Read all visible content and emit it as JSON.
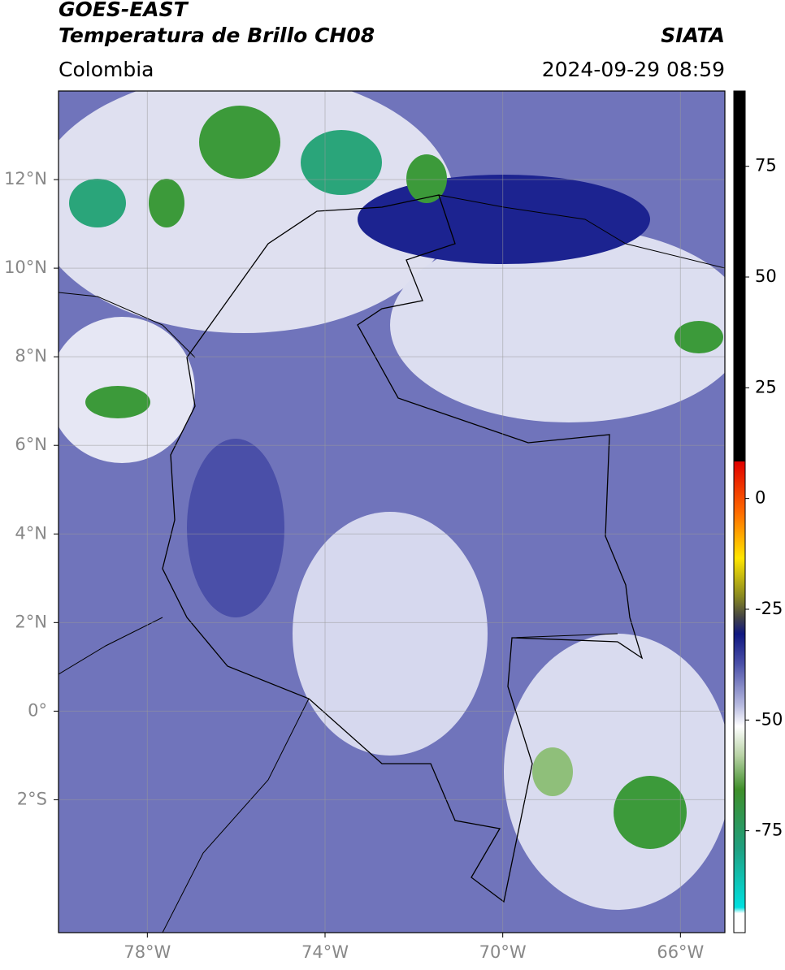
{
  "header": {
    "title": "GOES-EAST",
    "subtitle": "Temperatura de Brillo CH08",
    "source": "SIATA",
    "region": "Colombia",
    "datetime": "2024-09-29 08:59"
  },
  "map": {
    "lon_range": [
      -80,
      -65
    ],
    "lat_range": [
      -5,
      14
    ],
    "lon_ticks": [
      {
        "value": -78,
        "label": "78°W"
      },
      {
        "value": -74,
        "label": "74°W"
      },
      {
        "value": -70,
        "label": "70°W"
      },
      {
        "value": -66,
        "label": "66°W"
      }
    ],
    "lat_ticks": [
      {
        "value": 12,
        "label": "12°N"
      },
      {
        "value": 10,
        "label": "10°N"
      },
      {
        "value": 8,
        "label": "8°N"
      },
      {
        "value": 6,
        "label": "6°N"
      },
      {
        "value": 4,
        "label": "4°N"
      },
      {
        "value": 2,
        "label": "2°N"
      },
      {
        "value": 0,
        "label": "0°"
      },
      {
        "value": -2,
        "label": "2°S"
      }
    ]
  },
  "colorbar": {
    "range": [
      -98,
      92
    ],
    "ticks": [
      75,
      50,
      25,
      0,
      -25,
      -50,
      -75
    ]
  }
}
